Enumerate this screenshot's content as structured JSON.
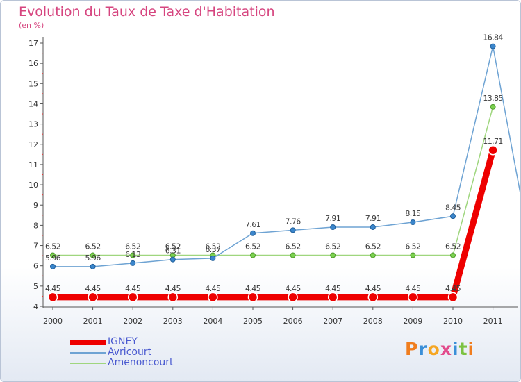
{
  "chart_data": {
    "type": "line",
    "title": "Evolution du Taux de Taxe d'Habitation",
    "subtitle": "(en %)",
    "categories": [
      "2000",
      "2001",
      "2002",
      "2003",
      "2004",
      "2005",
      "2006",
      "2007",
      "2008",
      "2009",
      "2010",
      "2011"
    ],
    "ylim": [
      4,
      17
    ],
    "yticks": [
      4,
      5,
      6,
      7,
      8,
      9,
      10,
      11,
      12,
      13,
      14,
      15,
      16,
      17
    ],
    "grid": false,
    "legend_position": "bottom-left",
    "series": [
      {
        "name": "IGNEY",
        "color": "#ee0000",
        "values": [
          4.45,
          4.45,
          4.45,
          4.45,
          4.45,
          4.45,
          4.45,
          4.45,
          4.45,
          4.45,
          4.45,
          11.71
        ],
        "labels": [
          "4.45",
          "4.45",
          "4.45",
          "4.45",
          "4.45",
          "4.45",
          "4.45",
          "4.45",
          "4.45",
          "4.45",
          "4.45",
          "11.71"
        ]
      },
      {
        "name": "Avricourt",
        "color": "#6ea3d3",
        "values": [
          5.96,
          5.96,
          6.13,
          6.31,
          6.37,
          7.61,
          7.76,
          7.91,
          7.91,
          8.15,
          8.45,
          16.84
        ],
        "labels": [
          "5.96",
          "5.96",
          "6.13",
          "6.31",
          "6.37",
          "7.61",
          "7.76",
          "7.91",
          "7.91",
          "8.15",
          "8.45",
          "16.84"
        ]
      },
      {
        "name": "Amenoncourt",
        "color": "#9fd67e",
        "values": [
          6.52,
          6.52,
          6.52,
          6.52,
          6.52,
          6.52,
          6.52,
          6.52,
          6.52,
          6.52,
          6.52,
          13.85
        ],
        "labels": [
          "6.52",
          "6.52",
          "6.52",
          "6.52",
          "6.52",
          "6.52",
          "6.52",
          "6.52",
          "6.52",
          "6.52",
          "6.52",
          "13.85"
        ]
      }
    ]
  },
  "branding": {
    "logo_letters": [
      "P",
      "r",
      "o",
      "x",
      "i",
      "t",
      "i"
    ],
    "logo_colors": [
      "#f07d1e",
      "#3a8fd8",
      "#f5a623",
      "#e24b8c",
      "#3a8fd8",
      "#7cc242",
      "#f07d1e"
    ]
  }
}
